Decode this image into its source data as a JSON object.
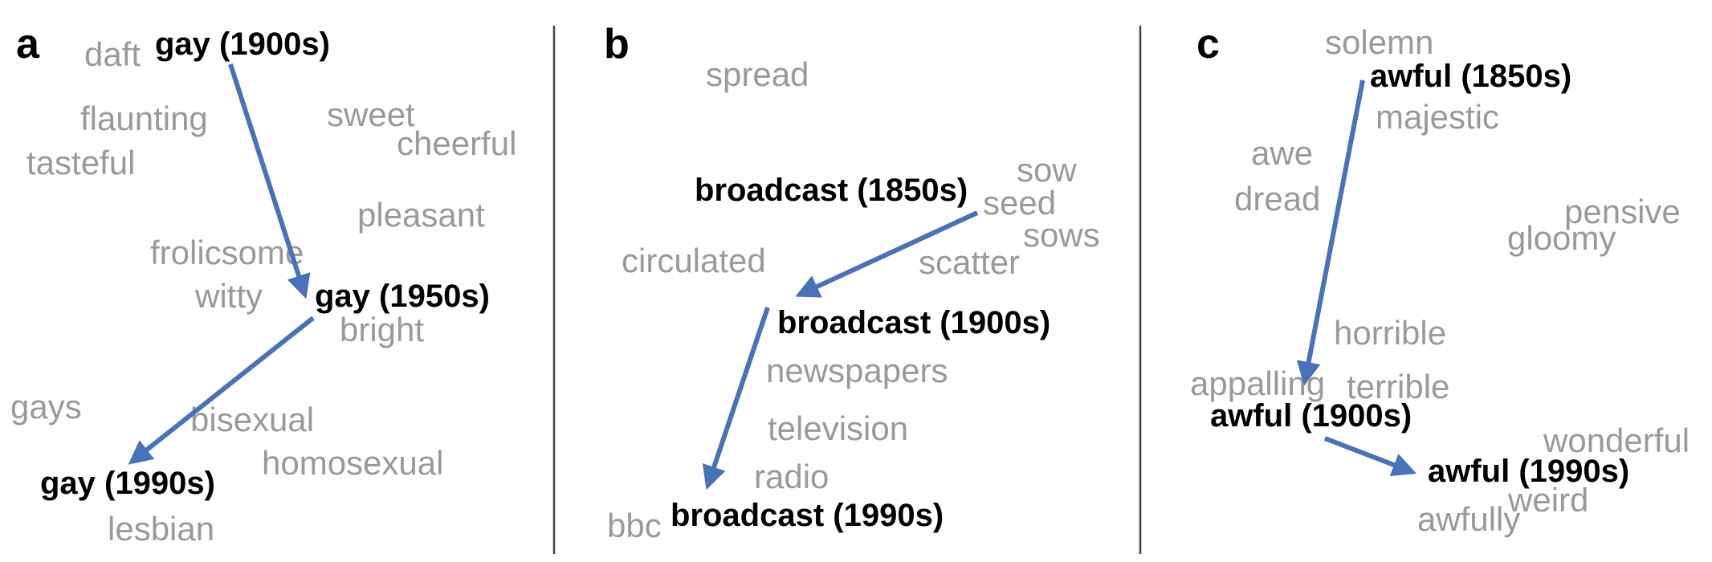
{
  "colors": {
    "arrow": "#4a72b8",
    "context_word": "#9a9a9a",
    "target_word": "#000000"
  },
  "panels": {
    "a": {
      "letter": "a",
      "context_words": [
        "daft",
        "flaunting",
        "tasteful",
        "sweet",
        "cheerful",
        "pleasant",
        "frolicsome",
        "witty",
        "bright",
        "gays",
        "bisexual",
        "homosexual",
        "lesbian"
      ],
      "targets": [
        "gay (1900s)",
        "gay (1950s)",
        "gay (1990s)"
      ]
    },
    "b": {
      "letter": "b",
      "context_words": [
        "spread",
        "sow",
        "seed",
        "sows",
        "circulated",
        "scatter",
        "newspapers",
        "television",
        "radio",
        "bbc"
      ],
      "targets": [
        "broadcast (1850s)",
        "broadcast (1900s)",
        "broadcast (1990s)"
      ]
    },
    "c": {
      "letter": "c",
      "context_words": [
        "solemn",
        "majestic",
        "awe",
        "dread",
        "pensive",
        "gloomy",
        "horrible",
        "appalling",
        "terrible",
        "wonderful",
        "weird",
        "awfully"
      ],
      "targets": [
        "awful (1850s)",
        "awful (1900s)",
        "awful (1990s)"
      ]
    }
  }
}
